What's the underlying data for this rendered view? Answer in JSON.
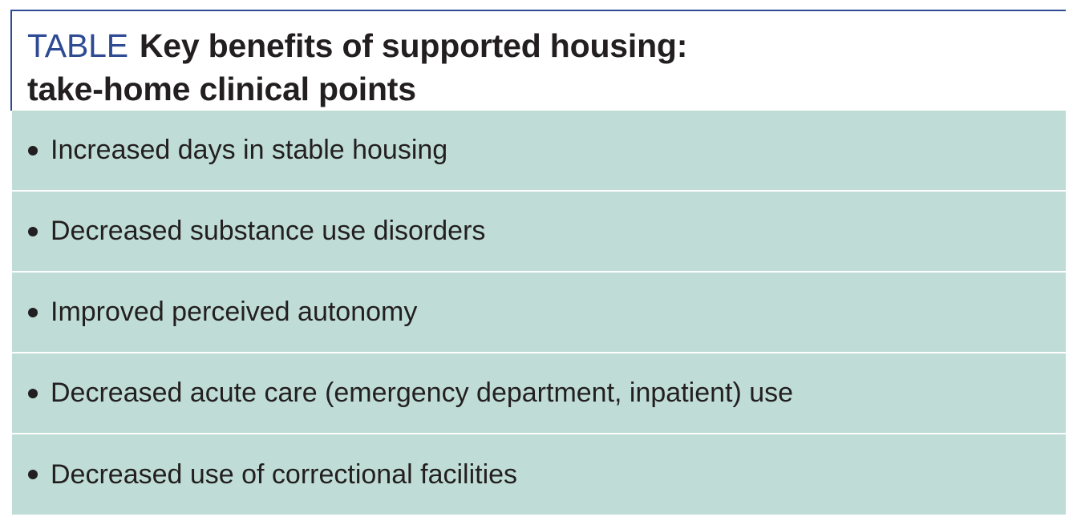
{
  "table": {
    "label": "TABLE",
    "title_line1": "Key benefits of supported housing:",
    "title_line2": "take-home clinical points",
    "items": [
      "Increased days in stable housing",
      "Decreased substance use disorders",
      "Improved perceived autonomy",
      "Decreased acute care (emergency department, inpatient) use",
      "Decreased use of correctional facilities"
    ],
    "colors": {
      "label_blue": "#2d4a93",
      "row_background": "#bfddd6",
      "text": "#231f20"
    }
  }
}
